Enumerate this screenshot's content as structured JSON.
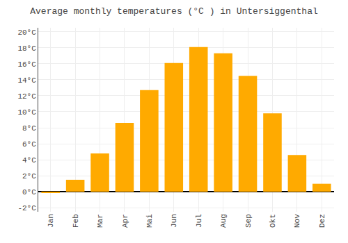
{
  "chart_data": {
    "type": "bar",
    "title": "Average monthly temperatures (°C ) in Untersiggenthal",
    "categories": [
      "Jan",
      "Feb",
      "Mar",
      "Apr",
      "Mai",
      "Jun",
      "Jul",
      "Aug",
      "Sep",
      "Okt",
      "Nov",
      "Dez"
    ],
    "values": [
      -0.1,
      1.5,
      4.8,
      8.6,
      12.7,
      16.1,
      18.1,
      17.3,
      14.5,
      9.8,
      4.6,
      1.0
    ],
    "color": "#FFAA00",
    "ylim": [
      -2.5,
      20.5
    ],
    "yticks": [
      {
        "value": -2,
        "label": "-2°C"
      },
      {
        "value": 0,
        "label": "0°C"
      },
      {
        "value": 2,
        "label": "2°C"
      },
      {
        "value": 4,
        "label": "4°C"
      },
      {
        "value": 6,
        "label": "6°C"
      },
      {
        "value": 8,
        "label": "8°C"
      },
      {
        "value": 10,
        "label": "10°C"
      },
      {
        "value": 12,
        "label": "12°C"
      },
      {
        "value": 14,
        "label": "14°C"
      },
      {
        "value": 16,
        "label": "16°C"
      },
      {
        "value": 18,
        "label": "18°C"
      },
      {
        "value": 20,
        "label": "20°C"
      }
    ],
    "grid": true
  }
}
